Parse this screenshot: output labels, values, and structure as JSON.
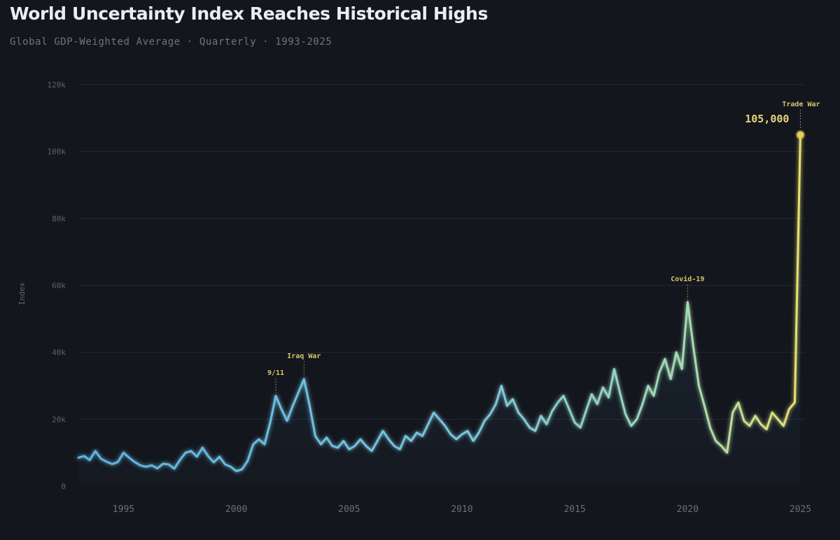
{
  "title": "World Uncertainty Index Reaches Historical Highs",
  "subtitle": "Global GDP-Weighted Average · Quarterly · 1993-2025",
  "colors": {
    "background": "#14161d",
    "line_start": "#5fb3e0",
    "line_mid": "#8fd3c2",
    "line_end": "#e8d96a",
    "peak": "#e6cf5a",
    "annotation": "#d9c36a"
  },
  "chart_data": {
    "type": "line",
    "title": "World Uncertainty Index Reaches Historical Highs",
    "subtitle": "Global GDP-Weighted Average · Quarterly · 1993-2025",
    "xlabel": "",
    "ylabel": "Index",
    "xlim": [
      1993,
      2025.7
    ],
    "ylim": [
      0,
      120000
    ],
    "grid": true,
    "x_ticks": [
      1995,
      2000,
      2005,
      2010,
      2015,
      2020,
      2025
    ],
    "y_ticks": [
      {
        "value": 0,
        "label": "0"
      },
      {
        "value": 20000,
        "label": "20k"
      },
      {
        "value": 40000,
        "label": "40k"
      },
      {
        "value": 60000,
        "label": "60k"
      },
      {
        "value": 80000,
        "label": "80k"
      },
      {
        "value": 100000,
        "label": "100k"
      },
      {
        "value": 120000,
        "label": "120k"
      }
    ],
    "series": [
      {
        "x": [
          1993.0,
          1993.25,
          1993.5,
          1993.75,
          1994.0,
          1994.25,
          1994.5,
          1994.75,
          1995.0,
          1995.25,
          1995.5,
          1995.75,
          1996.0,
          1996.25,
          1996.5,
          1996.75,
          1997.0,
          1997.25,
          1997.5,
          1997.75,
          1998.0,
          1998.25,
          1998.5,
          1998.75,
          1999.0,
          1999.25,
          1999.5,
          1999.75,
          2000.0,
          2000.25,
          2000.5,
          2000.75,
          2001.0,
          2001.25,
          2001.5,
          2001.75,
          2002.0,
          2002.25,
          2002.5,
          2002.75,
          2003.0,
          2003.25,
          2003.5,
          2003.75,
          2004.0,
          2004.25,
          2004.5,
          2004.75,
          2005.0,
          2005.25,
          2005.5,
          2005.75,
          2006.0,
          2006.25,
          2006.5,
          2006.75,
          2007.0,
          2007.25,
          2007.5,
          2007.75,
          2008.0,
          2008.25,
          2008.5,
          2008.75,
          2009.0,
          2009.25,
          2009.5,
          2009.75,
          2010.0,
          2010.25,
          2010.5,
          2010.75,
          2011.0,
          2011.25,
          2011.5,
          2011.75,
          2012.0,
          2012.25,
          2012.5,
          2012.75,
          2013.0,
          2013.25,
          2013.5,
          2013.75,
          2014.0,
          2014.25,
          2014.5,
          2014.75,
          2015.0,
          2015.25,
          2015.5,
          2015.75,
          2016.0,
          2016.25,
          2016.5,
          2016.75,
          2017.0,
          2017.25,
          2017.5,
          2017.75,
          2018.0,
          2018.25,
          2018.5,
          2018.75,
          2019.0,
          2019.25,
          2019.5,
          2019.75,
          2020.0,
          2020.25,
          2020.5,
          2020.75,
          2021.0,
          2021.25,
          2021.5,
          2021.75,
          2022.0,
          2022.25,
          2022.5,
          2022.75,
          2023.0,
          2023.25,
          2023.5,
          2023.75,
          2024.0,
          2024.25,
          2024.5,
          2024.75,
          2025.0
        ],
        "values": [
          8500,
          9000,
          7800,
          10500,
          8200,
          7300,
          6600,
          7200,
          10000,
          8500,
          7200,
          6200,
          5800,
          6200,
          5300,
          6700,
          6500,
          5200,
          7800,
          10000,
          10500,
          8800,
          11500,
          9000,
          7100,
          8800,
          6500,
          5800,
          4500,
          5000,
          7500,
          12500,
          14000,
          12500,
          19000,
          27000,
          23000,
          19500,
          24000,
          28000,
          32000,
          24000,
          15000,
          12500,
          14500,
          12000,
          11500,
          13500,
          11000,
          12000,
          14000,
          12000,
          10500,
          13500,
          16500,
          14000,
          12000,
          11000,
          15000,
          13500,
          16000,
          15000,
          18500,
          22000,
          20000,
          18000,
          15500,
          14000,
          15500,
          16500,
          13500,
          16000,
          19500,
          21500,
          24500,
          30000,
          24000,
          26000,
          22000,
          20000,
          17500,
          16500,
          21000,
          18500,
          22500,
          25000,
          27000,
          23000,
          19000,
          17500,
          22500,
          27500,
          24500,
          29500,
          26500,
          35000,
          28000,
          21500,
          18000,
          20000,
          24500,
          30000,
          27000,
          34000,
          38000,
          32000,
          40000,
          35000,
          55000,
          42000,
          30000,
          24000,
          17500,
          13500,
          12000,
          10000,
          22000,
          25000,
          19500,
          18000,
          21000,
          18500,
          17000,
          22000,
          20000,
          18000,
          23000,
          25000,
          105000
        ]
      }
    ],
    "annotations": [
      {
        "label": "9/11",
        "x": 2001.75,
        "y": 27000
      },
      {
        "label": "Iraq War",
        "x": 2003.0,
        "y": 32000
      },
      {
        "label": "Covid-19",
        "x": 2020.0,
        "y": 55000
      },
      {
        "label": "Trade War",
        "x": 2025.0,
        "y": 105000,
        "value_label": "105,000"
      }
    ]
  }
}
